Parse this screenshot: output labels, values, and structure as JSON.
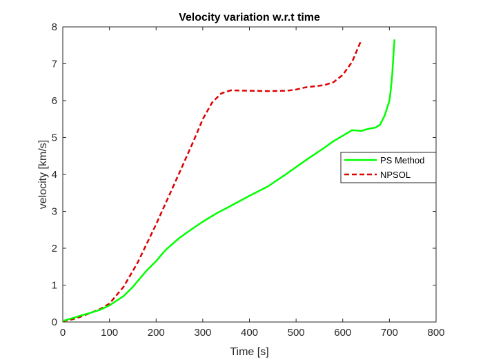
{
  "chart_data": {
    "type": "line",
    "title": "Velocity variation w.r.t time",
    "xlabel": "Time [s]",
    "ylabel": "velocity [km/s]",
    "xlim": [
      0,
      800
    ],
    "ylim": [
      0,
      8
    ],
    "x_ticks": [
      0,
      100,
      200,
      300,
      400,
      500,
      600,
      700,
      800
    ],
    "y_ticks": [
      0,
      1,
      2,
      3,
      4,
      5,
      6,
      7,
      8
    ],
    "grid": false,
    "legend_position": "right",
    "series": [
      {
        "name": "PS Method",
        "color": "#00ff00",
        "style": "solid",
        "x": [
          0,
          20,
          40,
          60,
          80,
          100,
          130,
          150,
          180,
          200,
          220,
          250,
          280,
          300,
          330,
          360,
          400,
          440,
          480,
          520,
          560,
          580,
          600,
          620,
          640,
          650,
          660,
          670,
          680,
          690,
          695,
          700,
          703,
          706,
          708,
          710,
          711
        ],
        "y": [
          0.03,
          0.1,
          0.18,
          0.25,
          0.33,
          0.45,
          0.7,
          0.95,
          1.4,
          1.65,
          1.95,
          2.28,
          2.55,
          2.72,
          2.95,
          3.15,
          3.42,
          3.68,
          4.02,
          4.38,
          4.72,
          4.9,
          5.05,
          5.2,
          5.18,
          5.22,
          5.25,
          5.27,
          5.35,
          5.6,
          5.8,
          6.0,
          6.3,
          6.7,
          7.1,
          7.5,
          7.66
        ]
      },
      {
        "name": "NPSOL",
        "color": "#dd0000",
        "style": "dashed",
        "x": [
          0,
          20,
          40,
          60,
          80,
          100,
          130,
          160,
          200,
          250,
          280,
          300,
          320,
          340,
          360,
          400,
          440,
          480,
          500,
          520,
          560,
          580,
          600,
          620,
          630,
          640
        ],
        "y": [
          0.02,
          0.07,
          0.15,
          0.25,
          0.35,
          0.5,
          0.95,
          1.6,
          2.65,
          4.05,
          4.9,
          5.5,
          5.95,
          6.2,
          6.28,
          6.27,
          6.26,
          6.27,
          6.3,
          6.36,
          6.42,
          6.5,
          6.7,
          7.05,
          7.35,
          7.65
        ]
      }
    ]
  }
}
